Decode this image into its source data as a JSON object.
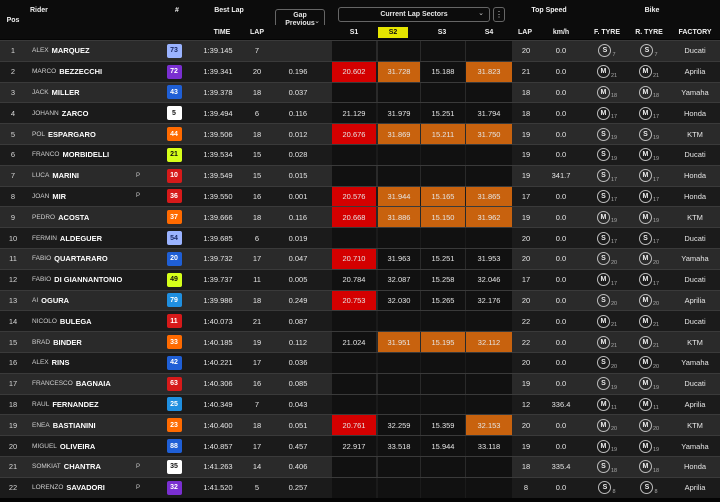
{
  "header": {
    "pos": "Pos",
    "rider": "Rider",
    "number": "#",
    "best_lap": "Best Lap",
    "time": "TIME",
    "lap": "LAP",
    "gap_line1": "Gap",
    "gap_line2": "Previous",
    "sectors_select": "Current Lap Sectors",
    "s1": "S1",
    "s2": "S2",
    "s3": "S3",
    "s4": "S4",
    "lap2": "LAP",
    "top_speed": "Top Speed",
    "kmh": "km/h",
    "bike": "Bike",
    "ftyre": "F. TYRE",
    "rtyre": "R. TYRE",
    "factory": "FACTORY"
  },
  "colors": {
    "red_sector": "#d40000",
    "orange_sector": "#c8620e",
    "s2_highlight": "#e6e600",
    "row_light": "#2a2a2a",
    "row_dark": "#1b1b1b",
    "sector_bg": "#111111"
  },
  "rows": [
    {
      "pos": "1",
      "first": "ALEX",
      "last": "MARQUEZ",
      "num": "73",
      "num_bg": "#9ab3ff",
      "num_fg": "#1a2a66",
      "pen": "",
      "time": "1:39.145",
      "lap": "7",
      "gap": "",
      "s1": "",
      "s2": "",
      "s3": "",
      "s4": "",
      "s_colors": [
        "",
        "",
        "",
        ""
      ],
      "lap2": "20",
      "speed": "0.0",
      "ft": "S",
      "ft_sub": "7",
      "rt": "S",
      "rt_sub": "7",
      "factory": "Ducati"
    },
    {
      "pos": "2",
      "first": "MARCO",
      "last": "BEZZECCHI",
      "num": "72",
      "num_bg": "#7a2fd1",
      "num_fg": "#ffffff",
      "pen": "",
      "time": "1:39.341",
      "lap": "20",
      "gap": "0.196",
      "s1": "20.602",
      "s2": "31.728",
      "s3": "15.188",
      "s4": "31.823",
      "s_colors": [
        "red",
        "orange",
        "",
        "orange"
      ],
      "lap2": "21",
      "speed": "0.0",
      "ft": "M",
      "ft_sub": "21",
      "rt": "M",
      "rt_sub": "21",
      "factory": "Aprilia"
    },
    {
      "pos": "3",
      "first": "JACK",
      "last": "MILLER",
      "num": "43",
      "num_bg": "#1f5fd6",
      "num_fg": "#ffffff",
      "pen": "",
      "time": "1:39.378",
      "lap": "18",
      "gap": "0.037",
      "s1": "",
      "s2": "",
      "s3": "",
      "s4": "",
      "s_colors": [
        "",
        "",
        "",
        ""
      ],
      "lap2": "18",
      "speed": "0.0",
      "ft": "M",
      "ft_sub": "18",
      "rt": "M",
      "rt_sub": "18",
      "factory": "Yamaha"
    },
    {
      "pos": "4",
      "first": "JOHANN",
      "last": "ZARCO",
      "num": "5",
      "num_bg": "#ffffff",
      "num_fg": "#111111",
      "pen": "",
      "time": "1:39.494",
      "lap": "6",
      "gap": "0.116",
      "s1": "21.129",
      "s2": "31.979",
      "s3": "15.251",
      "s4": "31.794",
      "s_colors": [
        "",
        "",
        "",
        ""
      ],
      "lap2": "18",
      "speed": "0.0",
      "ft": "M",
      "ft_sub": "17",
      "rt": "M",
      "rt_sub": "17",
      "factory": "Honda"
    },
    {
      "pos": "5",
      "first": "POL",
      "last": "ESPARGARO",
      "num": "44",
      "num_bg": "#ff6a00",
      "num_fg": "#ffffff",
      "pen": "",
      "time": "1:39.506",
      "lap": "18",
      "gap": "0.012",
      "s1": "20.676",
      "s2": "31.869",
      "s3": "15.211",
      "s4": "31.750",
      "s_colors": [
        "red",
        "orange",
        "orange",
        "orange"
      ],
      "lap2": "19",
      "speed": "0.0",
      "ft": "S",
      "ft_sub": "19",
      "rt": "S",
      "rt_sub": "19",
      "factory": "KTM"
    },
    {
      "pos": "6",
      "first": "FRANCO",
      "last": "MORBIDELLI",
      "num": "21",
      "num_bg": "#d6ff1a",
      "num_fg": "#111111",
      "pen": "",
      "time": "1:39.534",
      "lap": "15",
      "gap": "0.028",
      "s1": "",
      "s2": "",
      "s3": "",
      "s4": "",
      "s_colors": [
        "",
        "",
        "",
        ""
      ],
      "lap2": "19",
      "speed": "0.0",
      "ft": "S",
      "ft_sub": "19",
      "rt": "M",
      "rt_sub": "19",
      "factory": "Ducati"
    },
    {
      "pos": "7",
      "first": "LUCA",
      "last": "MARINI",
      "num": "10",
      "num_bg": "#d61a1a",
      "num_fg": "#ffffff",
      "pen": "P",
      "time": "1:39.549",
      "lap": "15",
      "gap": "0.015",
      "s1": "",
      "s2": "",
      "s3": "",
      "s4": "",
      "s_colors": [
        "",
        "",
        "",
        ""
      ],
      "lap2": "19",
      "speed": "341.7",
      "ft": "S",
      "ft_sub": "17",
      "rt": "M",
      "rt_sub": "17",
      "factory": "Honda"
    },
    {
      "pos": "8",
      "first": "JOAN",
      "last": "MIR",
      "num": "36",
      "num_bg": "#d61a1a",
      "num_fg": "#ffffff",
      "pen": "P",
      "time": "1:39.550",
      "lap": "16",
      "gap": "0.001",
      "s1": "20.576",
      "s2": "31.944",
      "s3": "15.165",
      "s4": "31.865",
      "s_colors": [
        "red",
        "orange",
        "orange",
        "orange"
      ],
      "lap2": "17",
      "speed": "0.0",
      "ft": "S",
      "ft_sub": "17",
      "rt": "M",
      "rt_sub": "17",
      "factory": "Honda"
    },
    {
      "pos": "9",
      "first": "PEDRO",
      "last": "ACOSTA",
      "num": "37",
      "num_bg": "#ff6a00",
      "num_fg": "#ffffff",
      "pen": "",
      "time": "1:39.666",
      "lap": "18",
      "gap": "0.116",
      "s1": "20.668",
      "s2": "31.886",
      "s3": "15.150",
      "s4": "31.962",
      "s_colors": [
        "red",
        "orange",
        "orange",
        "orange"
      ],
      "lap2": "19",
      "speed": "0.0",
      "ft": "M",
      "ft_sub": "19",
      "rt": "M",
      "rt_sub": "19",
      "factory": "KTM"
    },
    {
      "pos": "10",
      "first": "FERMIN",
      "last": "ALDEGUER",
      "num": "54",
      "num_bg": "#9ab3ff",
      "num_fg": "#1a2a66",
      "pen": "",
      "time": "1:39.685",
      "lap": "6",
      "gap": "0.019",
      "s1": "",
      "s2": "",
      "s3": "",
      "s4": "",
      "s_colors": [
        "",
        "",
        "",
        ""
      ],
      "lap2": "20",
      "speed": "0.0",
      "ft": "S",
      "ft_sub": "17",
      "rt": "S",
      "rt_sub": "17",
      "factory": "Ducati"
    },
    {
      "pos": "11",
      "first": "FABIO",
      "last": "QUARTARARO",
      "num": "20",
      "num_bg": "#1f5fd6",
      "num_fg": "#ffffff",
      "pen": "",
      "time": "1:39.732",
      "lap": "17",
      "gap": "0.047",
      "s1": "20.710",
      "s2": "31.963",
      "s3": "15.251",
      "s4": "31.953",
      "s_colors": [
        "red",
        "",
        "",
        ""
      ],
      "lap2": "20",
      "speed": "0.0",
      "ft": "S",
      "ft_sub": "20",
      "rt": "M",
      "rt_sub": "20",
      "factory": "Yamaha"
    },
    {
      "pos": "12",
      "first": "FABIO",
      "last": "DI GIANNANTONIO",
      "num": "49",
      "num_bg": "#d6ff1a",
      "num_fg": "#111111",
      "pen": "",
      "time": "1:39.737",
      "lap": "11",
      "gap": "0.005",
      "s1": "20.784",
      "s2": "32.087",
      "s3": "15.258",
      "s4": "32.046",
      "s_colors": [
        "",
        "",
        "",
        ""
      ],
      "lap2": "17",
      "speed": "0.0",
      "ft": "M",
      "ft_sub": "17",
      "rt": "M",
      "rt_sub": "17",
      "factory": "Ducati"
    },
    {
      "pos": "13",
      "first": "AI",
      "last": "OGURA",
      "num": "79",
      "num_bg": "#1f8fe0",
      "num_fg": "#ffffff",
      "pen": "",
      "time": "1:39.986",
      "lap": "18",
      "gap": "0.249",
      "s1": "20.753",
      "s2": "32.030",
      "s3": "15.265",
      "s4": "32.176",
      "s_colors": [
        "red",
        "",
        "",
        ""
      ],
      "lap2": "20",
      "speed": "0.0",
      "ft": "S",
      "ft_sub": "20",
      "rt": "M",
      "rt_sub": "20",
      "factory": "Aprilia"
    },
    {
      "pos": "14",
      "first": "NICOLO",
      "last": "BULEGA",
      "num": "11",
      "num_bg": "#d61a1a",
      "num_fg": "#ffffff",
      "pen": "",
      "time": "1:40.073",
      "lap": "21",
      "gap": "0.087",
      "s1": "",
      "s2": "",
      "s3": "",
      "s4": "",
      "s_colors": [
        "",
        "",
        "",
        ""
      ],
      "lap2": "22",
      "speed": "0.0",
      "ft": "M",
      "ft_sub": "21",
      "rt": "M",
      "rt_sub": "21",
      "factory": "Ducati"
    },
    {
      "pos": "15",
      "first": "BRAD",
      "last": "BINDER",
      "num": "33",
      "num_bg": "#ff6a00",
      "num_fg": "#ffffff",
      "pen": "",
      "time": "1:40.185",
      "lap": "19",
      "gap": "0.112",
      "s1": "21.024",
      "s2": "31.951",
      "s3": "15.195",
      "s4": "32.112",
      "s_colors": [
        "",
        "orange",
        "orange",
        "orange"
      ],
      "lap2": "22",
      "speed": "0.0",
      "ft": "M",
      "ft_sub": "21",
      "rt": "M",
      "rt_sub": "21",
      "factory": "KTM"
    },
    {
      "pos": "16",
      "first": "ALEX",
      "last": "RINS",
      "num": "42",
      "num_bg": "#1f5fd6",
      "num_fg": "#ffffff",
      "pen": "",
      "time": "1:40.221",
      "lap": "17",
      "gap": "0.036",
      "s1": "",
      "s2": "",
      "s3": "",
      "s4": "",
      "s_colors": [
        "",
        "",
        "",
        ""
      ],
      "lap2": "20",
      "speed": "0.0",
      "ft": "S",
      "ft_sub": "20",
      "rt": "M",
      "rt_sub": "20",
      "factory": "Yamaha"
    },
    {
      "pos": "17",
      "first": "FRANCESCO",
      "last": "BAGNAIA",
      "num": "63",
      "num_bg": "#d61a1a",
      "num_fg": "#ffffff",
      "pen": "",
      "time": "1:40.306",
      "lap": "16",
      "gap": "0.085",
      "s1": "",
      "s2": "",
      "s3": "",
      "s4": "",
      "s_colors": [
        "",
        "",
        "",
        ""
      ],
      "lap2": "19",
      "speed": "0.0",
      "ft": "S",
      "ft_sub": "19",
      "rt": "M",
      "rt_sub": "19",
      "factory": "Ducati"
    },
    {
      "pos": "18",
      "first": "RAUL",
      "last": "FERNANDEZ",
      "num": "25",
      "num_bg": "#1f8fe0",
      "num_fg": "#ffffff",
      "pen": "",
      "time": "1:40.349",
      "lap": "7",
      "gap": "0.043",
      "s1": "",
      "s2": "",
      "s3": "",
      "s4": "",
      "s_colors": [
        "",
        "",
        "",
        ""
      ],
      "lap2": "12",
      "speed": "336.4",
      "ft": "M",
      "ft_sub": "11",
      "rt": "M",
      "rt_sub": "11",
      "factory": "Aprilia"
    },
    {
      "pos": "19",
      "first": "ENEA",
      "last": "BASTIANINI",
      "num": "23",
      "num_bg": "#ff6a00",
      "num_fg": "#ffffff",
      "pen": "",
      "time": "1:40.400",
      "lap": "18",
      "gap": "0.051",
      "s1": "20.761",
      "s2": "32.259",
      "s3": "15.359",
      "s4": "32.153",
      "s_colors": [
        "red",
        "",
        "",
        "orange"
      ],
      "lap2": "20",
      "speed": "0.0",
      "ft": "M",
      "ft_sub": "20",
      "rt": "M",
      "rt_sub": "20",
      "factory": "KTM"
    },
    {
      "pos": "20",
      "first": "MIGUEL",
      "last": "OLIVEIRA",
      "num": "88",
      "num_bg": "#1f5fd6",
      "num_fg": "#ffffff",
      "pen": "",
      "time": "1:40.857",
      "lap": "17",
      "gap": "0.457",
      "s1": "22.917",
      "s2": "33.518",
      "s3": "15.944",
      "s4": "33.118",
      "s_colors": [
        "",
        "",
        "",
        ""
      ],
      "lap2": "19",
      "speed": "0.0",
      "ft": "M",
      "ft_sub": "19",
      "rt": "M",
      "rt_sub": "19",
      "factory": "Yamaha"
    },
    {
      "pos": "21",
      "first": "SOMKIAT",
      "last": "CHANTRA",
      "num": "35",
      "num_bg": "#ffffff",
      "num_fg": "#111111",
      "pen": "P",
      "time": "1:41.263",
      "lap": "14",
      "gap": "0.406",
      "s1": "",
      "s2": "",
      "s3": "",
      "s4": "",
      "s_colors": [
        "",
        "",
        "",
        ""
      ],
      "lap2": "18",
      "speed": "335.4",
      "ft": "S",
      "ft_sub": "18",
      "rt": "M",
      "rt_sub": "18",
      "factory": "Honda"
    },
    {
      "pos": "22",
      "first": "LORENZO",
      "last": "SAVADORI",
      "num": "32",
      "num_bg": "#7a2fd1",
      "num_fg": "#ffffff",
      "pen": "P",
      "time": "1:41.520",
      "lap": "5",
      "gap": "0.257",
      "s1": "",
      "s2": "",
      "s3": "",
      "s4": "",
      "s_colors": [
        "",
        "",
        "",
        ""
      ],
      "lap2": "8",
      "speed": "0.0",
      "ft": "S",
      "ft_sub": "8",
      "rt": "S",
      "rt_sub": "8",
      "factory": "Aprilia"
    }
  ]
}
